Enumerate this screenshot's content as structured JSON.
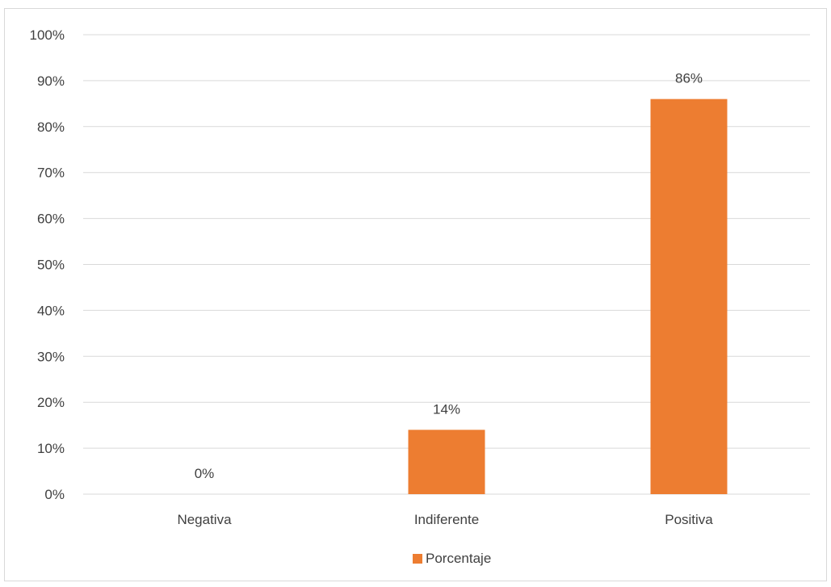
{
  "chart_data": {
    "type": "bar",
    "categories": [
      "Negativa",
      "Indiferente",
      "Positiva"
    ],
    "series": [
      {
        "name": "Porcentaje",
        "values": [
          0,
          14,
          86
        ],
        "color": "#ED7D31"
      }
    ],
    "data_labels": [
      "0%",
      "14%",
      "86%"
    ],
    "ylim": [
      0,
      100
    ],
    "y_ticks": [
      0,
      10,
      20,
      30,
      40,
      50,
      60,
      70,
      80,
      90,
      100
    ],
    "y_tick_labels": [
      "0%",
      "10%",
      "20%",
      "30%",
      "40%",
      "50%",
      "60%",
      "70%",
      "80%",
      "90%",
      "100%"
    ],
    "grid": true,
    "legend_position": "bottom",
    "title": "",
    "xlabel": "",
    "ylabel": ""
  }
}
